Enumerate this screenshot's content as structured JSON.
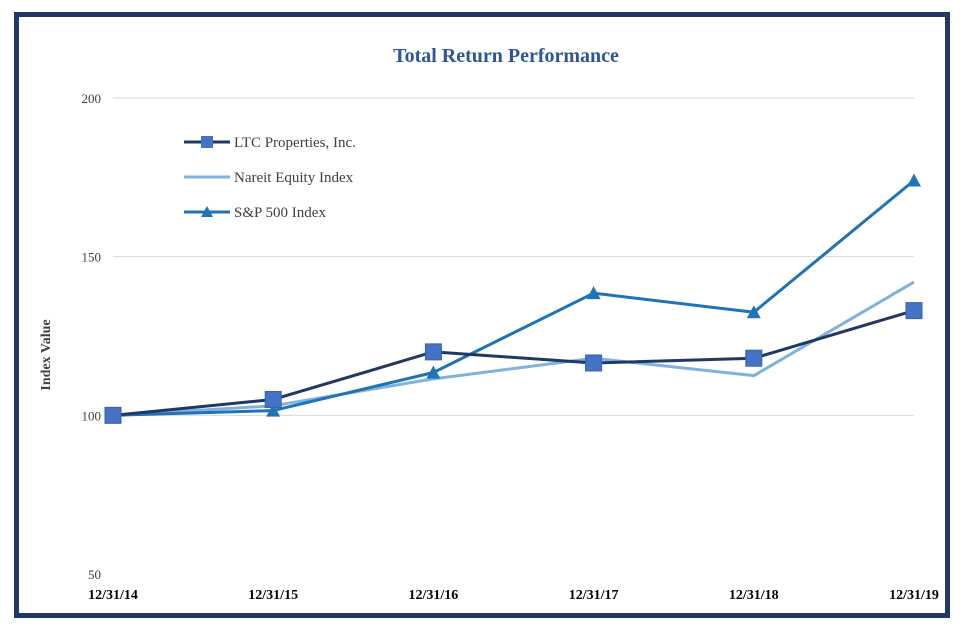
{
  "chart_data": {
    "type": "line",
    "title": "Total Return Performance",
    "xlabel": "",
    "ylabel": "Index Value",
    "categories": [
      "12/31/14",
      "12/31/15",
      "12/31/16",
      "12/31/17",
      "12/31/18",
      "12/31/19"
    ],
    "ylim": [
      50,
      200
    ],
    "yticks": [
      50,
      100,
      150,
      200
    ],
    "grid": true,
    "legend_position": "top-left",
    "series": [
      {
        "name": "LTC Properties, Inc.",
        "values": [
          100,
          105,
          120,
          116.5,
          118,
          133
        ],
        "color": "#1f3864",
        "marker": "square"
      },
      {
        "name": "Nareit Equity  Index",
        "values": [
          100,
          103,
          111.5,
          118,
          112.5,
          142
        ],
        "color": "#7fb2dc",
        "marker": "none"
      },
      {
        "name": "S&P 500 Index",
        "values": [
          100,
          101.5,
          113.5,
          138.5,
          132.5,
          174
        ],
        "color": "#1f73b7",
        "marker": "triangle"
      }
    ],
    "marker_color": "#4472c4"
  }
}
